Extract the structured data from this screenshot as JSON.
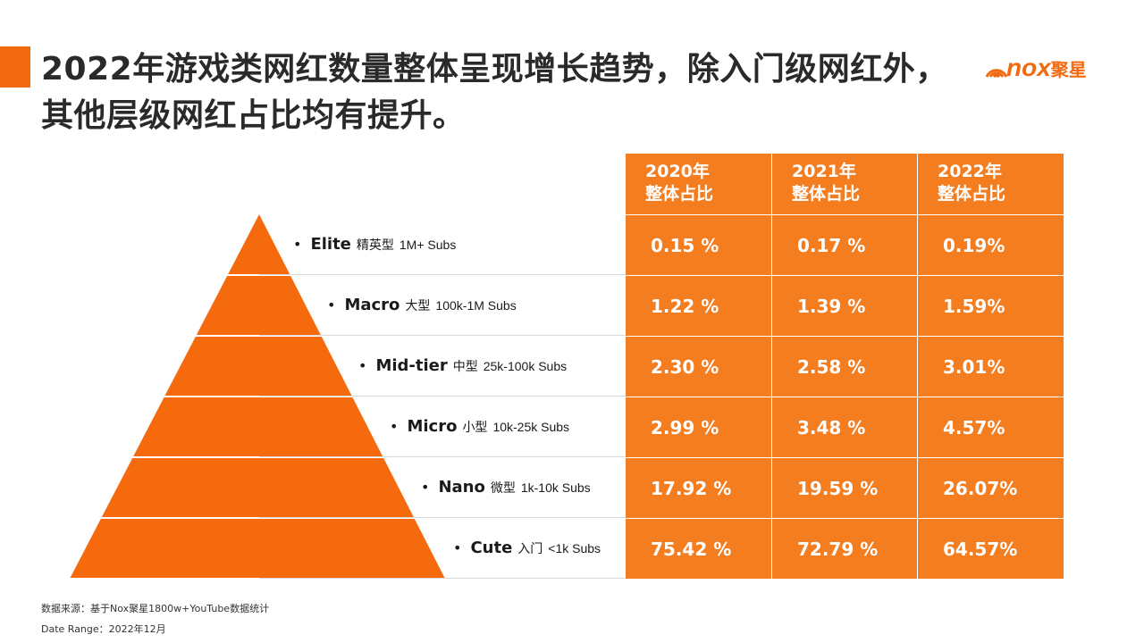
{
  "title": "2022年游戏类网红数量整体呈现增长趋势，除入门级网红外，其他层级网红占比均有提升。",
  "logo": {
    "text": "nox",
    "cn": "聚星"
  },
  "colors": {
    "accent": "#f26a10",
    "pyramid": "#f46a0c",
    "table": "#f47d20"
  },
  "chart_data": {
    "type": "table",
    "columns": [
      {
        "year": "2020年",
        "label": "整体占比"
      },
      {
        "year": "2021年",
        "label": "整体占比"
      },
      {
        "year": "2022年",
        "label": "整体占比"
      }
    ],
    "rows": [
      {
        "name": "Elite",
        "cn": "精英型",
        "range": "1M+ Subs",
        "values": [
          "0.15 %",
          "0.17 %",
          "0.19%"
        ]
      },
      {
        "name": "Macro",
        "cn": "大型",
        "range": "100k-1M Subs",
        "values": [
          "1.22 %",
          "1.39 %",
          "1.59%"
        ]
      },
      {
        "name": "Mid-tier",
        "cn": "中型",
        "range": "25k-100k Subs",
        "values": [
          "2.30 %",
          "2.58 %",
          "3.01%"
        ]
      },
      {
        "name": "Micro",
        "cn": "小型",
        "range": "10k-25k Subs",
        "values": [
          "2.99 %",
          "3.48 %",
          "4.57%"
        ]
      },
      {
        "name": "Nano",
        "cn": "微型",
        "range": "1k-10k Subs",
        "values": [
          "17.92 %",
          "19.59 %",
          "26.07%"
        ]
      },
      {
        "name": "Cute",
        "cn": "入门",
        "range": "<1k Subs",
        "values": [
          "75.42 %",
          "72.79 %",
          "64.57%"
        ]
      }
    ]
  },
  "footnotes": {
    "source": "数据来源：基于Nox聚星1800w+YouTube数据统计",
    "date_range": "Date Range：2022年12月"
  }
}
